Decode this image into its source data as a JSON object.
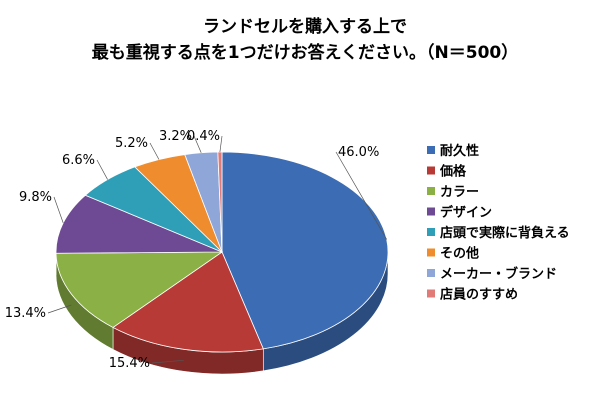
{
  "chart_data": {
    "type": "pie",
    "title_lines": [
      "ランドセルを購入する上で",
      "最も重視する点を1つだけお答えください。（N＝500）"
    ],
    "slices": [
      {
        "label": "耐久性",
        "value": 46.0,
        "value_label": "46.0%",
        "color": "#3c6cb4"
      },
      {
        "label": "価格",
        "value": 15.4,
        "value_label": "15.4%",
        "color": "#b83a36"
      },
      {
        "label": "カラー",
        "value": 13.4,
        "value_label": "13.4%",
        "color": "#8bb046"
      },
      {
        "label": "デザイン",
        "value": 9.8,
        "value_label": "9.8%",
        "color": "#6e4a94"
      },
      {
        "label": "店頭で実際に背負える",
        "value": 6.6,
        "value_label": "6.6%",
        "color": "#2f9fb8"
      },
      {
        "label": "その他",
        "value": 5.2,
        "value_label": "5.2%",
        "color": "#ee8c2e"
      },
      {
        "label": "メーカー・ブランド",
        "value": 3.2,
        "value_label": "3.2%",
        "color": "#8fa6d8"
      },
      {
        "label": "店員のすすめ",
        "value": 0.4,
        "value_label": "0.4%",
        "color": "#e07b78"
      }
    ],
    "legend_position": "right",
    "style": "3d-pie"
  }
}
